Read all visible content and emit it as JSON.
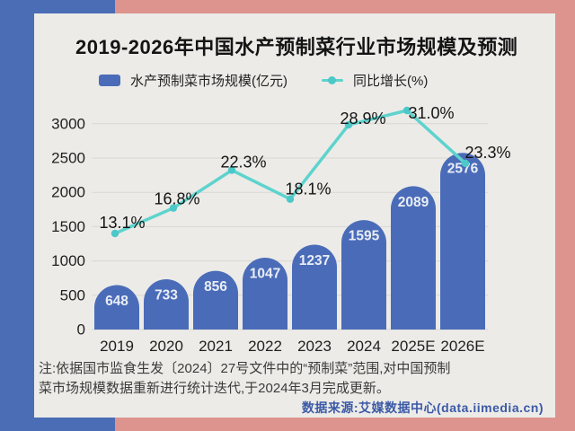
{
  "header": {
    "title": "2019-2026年中国水产预制菜行业市场规模及预测"
  },
  "legend": {
    "bar_label": "水产预制菜市场规模(亿元)",
    "line_label": "同比增长(%)"
  },
  "chart_data": {
    "type": "bar",
    "title": "2019-2026年中国水产预制菜行业市场规模及预测",
    "categories": [
      "2019",
      "2020",
      "2021",
      "2022",
      "2023",
      "2024",
      "2025E",
      "2026E"
    ],
    "series": [
      {
        "name": "水产预制菜市场规模(亿元)",
        "type": "bar",
        "axis": "left",
        "values": [
          648,
          733,
          856,
          1047,
          1237,
          1595,
          2089,
          2576
        ],
        "value_labels": [
          "648",
          "733",
          "856",
          "1047",
          "1237",
          "1595",
          "2089",
          "2576"
        ],
        "color": "#4a6cb8"
      },
      {
        "name": "同比增长(%)",
        "type": "line",
        "axis": "right",
        "values": [
          13.1,
          16.8,
          22.3,
          18.1,
          28.9,
          31.0,
          23.3
        ],
        "value_labels": [
          "13.1%",
          "16.8%",
          "22.3%",
          "18.1%",
          "28.9%",
          "31.0%",
          "23.3%"
        ],
        "color": "#5ed3cd"
      }
    ],
    "left_axis": {
      "ticks": [
        0,
        500,
        1000,
        1500,
        2000,
        2500,
        3000
      ],
      "tick_labels": [
        "0",
        "500",
        "1000",
        "1500",
        "2000",
        "2500",
        "3000"
      ],
      "range": [
        0,
        3000
      ]
    },
    "grid": true,
    "legend_position": "top"
  },
  "footnote": {
    "line1": "注:依据国市监食生发〔2024〕27号文件中的“预制菜”范围,对中国预制",
    "line2": "菜市场规模数据重新进行统计迭代,于2024年3月完成更新。"
  },
  "source": {
    "text": "数据来源:艾媒数据中心(data.iimedia.cn)"
  },
  "colors": {
    "background_pink": "#dd938e",
    "accent_blue": "#4a6db5",
    "card": "#ecebe8",
    "bar": "#4a6cb8",
    "bar_value_text": "#e9edf5",
    "line": "#5ed3cd",
    "line_dot": "#4cc8c8",
    "gridline": "#d9d7d4",
    "title_text": "#141414",
    "axis_text": "#1f1f1f",
    "source_text": "#3c5aa6"
  }
}
